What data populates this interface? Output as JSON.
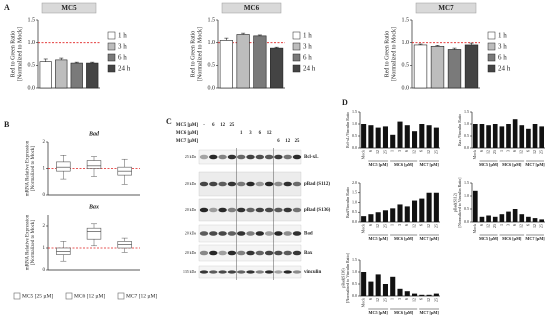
{
  "labels": [
    "A",
    "B",
    "C",
    "D"
  ],
  "panel_b_legend": [
    "MC5 [25  µM]",
    "MC6 [12  µM]",
    "MC7 [12  µM]"
  ],
  "blot": {
    "header": [
      {
        "label": "MC5 [µM]",
        "values": [
          "-",
          "6",
          "12",
          "25",
          null,
          null,
          null,
          null,
          null,
          null,
          null
        ]
      },
      {
        "label": "MC6 [µM]",
        "values": [
          null,
          null,
          null,
          null,
          "1",
          "3",
          "6",
          "12",
          null,
          null,
          null
        ]
      },
      {
        "label": "MC7 [µM]",
        "values": [
          null,
          null,
          null,
          null,
          null,
          null,
          null,
          null,
          "6",
          "12",
          "25"
        ]
      }
    ],
    "rows": [
      {
        "name": "Bcl-xL",
        "kda": "25 kDa"
      },
      {
        "name": "pBad (S112)",
        "kda": "20 kDa"
      },
      {
        "name": "pBad (S136)",
        "kda": "20 kDa"
      },
      {
        "name": "Bad",
        "kda": "20 kDa"
      },
      {
        "name": "Bax",
        "kda": "20 kDa"
      },
      {
        "name": "vinculin",
        "kda": "135 kDa"
      }
    ]
  },
  "chart_data": [
    {
      "type": "bar",
      "title": "MC5",
      "ylabel": [
        "Red to Green Ratio",
        "[Normalized to Mock]"
      ],
      "categories": [
        "1 h",
        "3 h",
        "6 h",
        "24 h"
      ],
      "values": [
        0.58,
        0.62,
        0.55,
        0.55
      ],
      "errors": [
        0.06,
        0.04,
        0.02,
        0.02
      ],
      "colors": [
        "#ffffff",
        "#bdbdbd",
        "#7a7a7a",
        "#444444"
      ],
      "ylim": [
        0,
        1.5
      ],
      "yticks": [
        {
          "value": 0,
          "label": "0.0"
        },
        0.5,
        {
          "value": 1,
          "label": "1.0"
        },
        1.5
      ],
      "ref_line": {
        "value": 1,
        "color": "#e02020"
      }
    },
    {
      "type": "bar",
      "title": "MC6",
      "ylabel": [
        "Red to Green Ratio",
        "[Normalized to Mock]"
      ],
      "categories": [
        "1 h",
        "3 h",
        "6 h",
        "24 h"
      ],
      "values": [
        1.05,
        1.18,
        1.15,
        0.88
      ],
      "errors": [
        0.05,
        0.03,
        0.02,
        0.02
      ],
      "colors": [
        "#ffffff",
        "#bdbdbd",
        "#7a7a7a",
        "#444444"
      ],
      "ylim": [
        0,
        1.5
      ],
      "yticks": [
        {
          "value": 0,
          "label": "0.0"
        },
        0.5,
        {
          "value": 1,
          "label": "1.0"
        },
        1.5
      ],
      "ref_line": {
        "value": 1,
        "color": "#e02020"
      }
    },
    {
      "type": "bar",
      "title": "MC7",
      "ylabel": [
        "Red to Green Ratio",
        "[Normalized to Mock]"
      ],
      "categories": [
        "1 h",
        "3 h",
        "6 h",
        "24 h"
      ],
      "values": [
        0.95,
        0.92,
        0.85,
        0.95
      ],
      "errors": [
        0.02,
        0.02,
        0.03,
        0.04
      ],
      "colors": [
        "#ffffff",
        "#bdbdbd",
        "#7a7a7a",
        "#444444"
      ],
      "ylim": [
        0,
        1.5
      ],
      "yticks": [
        {
          "value": 0,
          "label": "0.0"
        },
        0.5,
        {
          "value": 1,
          "label": "1.0"
        },
        1.5
      ],
      "ref_line": {
        "value": 1,
        "color": "#e02020"
      }
    },
    {
      "type": "box",
      "title": "Bad",
      "ylabel": [
        "mRNA Relative Expression",
        "[Normalized to Mock]"
      ],
      "ylim": [
        0,
        2
      ],
      "yticks": [
        0,
        1,
        2
      ],
      "ref_line": {
        "value": 1,
        "color": "#e02020"
      },
      "boxes": [
        {
          "min": 0.6,
          "q1": 0.9,
          "median": 1.05,
          "q3": 1.25,
          "max": 1.5
        },
        {
          "min": 0.7,
          "q1": 1.0,
          "median": 1.1,
          "q3": 1.3,
          "max": 1.45
        },
        {
          "min": 0.4,
          "q1": 0.75,
          "median": 0.9,
          "q3": 1.05,
          "max": 1.35
        }
      ]
    },
    {
      "type": "box",
      "title": "Bax",
      "ylabel": [
        "mRNA Relative Expression",
        "[Normalized to Mock]"
      ],
      "ylim": [
        0,
        2.5
      ],
      "yticks": [
        0,
        1,
        2
      ],
      "ref_line": {
        "value": 1,
        "color": "#e02020"
      },
      "boxes": [
        {
          "min": 0.4,
          "q1": 0.7,
          "median": 0.85,
          "q3": 1.0,
          "max": 1.3
        },
        {
          "min": 1.1,
          "q1": 1.4,
          "median": 1.75,
          "q3": 1.9,
          "max": 2.1
        },
        {
          "min": 0.8,
          "q1": 1.0,
          "median": 1.15,
          "q3": 1.3,
          "max": 1.45
        }
      ]
    },
    {
      "type": "dbar",
      "ylabel": [
        "Bcl-xL/Vinculin Ratio"
      ],
      "categories": [
        "Mock",
        "6",
        "12",
        "25",
        "1",
        "3",
        "6",
        "12",
        "6",
        "12",
        "25"
      ],
      "groups": [
        "MC5 [µM]",
        "MC6 [µM]",
        "MC7 [µM]"
      ],
      "values": [
        1.0,
        0.95,
        0.85,
        0.9,
        0.55,
        1.1,
        0.95,
        0.7,
        1.0,
        0.95,
        0.85
      ],
      "color": "#111111",
      "ylim": [
        0,
        1.5
      ],
      "yticks": [
        {
          "value": 0,
          "label": "0.0"
        },
        0.5,
        {
          "value": 1,
          "label": "1.0"
        },
        1.5
      ]
    },
    {
      "type": "dbar",
      "ylabel": [
        "Bax /Vinculin Ratio"
      ],
      "categories": [
        "Mock",
        "6",
        "12",
        "25",
        "1",
        "3",
        "6",
        "12",
        "6",
        "12",
        "25"
      ],
      "groups": [
        "MC5 [µM]",
        "MC6 [µM]",
        "MC7 [µM]"
      ],
      "values": [
        1.0,
        1.0,
        0.95,
        1.0,
        0.9,
        1.0,
        1.2,
        0.95,
        0.8,
        1.0,
        0.9
      ],
      "color": "#111111",
      "ylim": [
        0,
        1.5
      ],
      "yticks": [
        {
          "value": 0,
          "label": "0.0"
        },
        0.5,
        {
          "value": 1,
          "label": "1.0"
        },
        1.5
      ]
    },
    {
      "type": "dbar",
      "ylabel": [
        "Bad/Vinculin Ratio"
      ],
      "categories": [
        "Mock",
        "6",
        "12",
        "25",
        "1",
        "3",
        "6",
        "12",
        "6",
        "12",
        "25"
      ],
      "groups": [
        "MC5 [µM]",
        "MC6 [µM]",
        "MC7 [µM]"
      ],
      "values": [
        0.3,
        0.4,
        0.5,
        0.6,
        0.7,
        0.9,
        0.8,
        1.1,
        1.2,
        1.5,
        1.5
      ],
      "color": "#111111",
      "ylim": [
        0,
        2
      ],
      "yticks": [
        {
          "value": 0,
          "label": "0.0"
        },
        0.5,
        {
          "value": 1,
          "label": "1.0"
        },
        1.5,
        {
          "value": 2,
          "label": "2.0"
        }
      ]
    },
    {
      "type": "dbar",
      "ylabel": [
        "pBad(S112)",
        "[Normalized to Vinculin Ratio]"
      ],
      "categories": [
        "Mock",
        "6",
        "12",
        "25",
        "1",
        "3",
        "6",
        "12",
        "6",
        "12",
        "25"
      ],
      "groups": [
        "MC5 [µM]",
        "MC6 [µM]",
        "MC7 [µM]"
      ],
      "values": [
        1.2,
        0.2,
        0.25,
        0.2,
        0.3,
        0.4,
        0.5,
        0.3,
        0.2,
        0.15,
        0.1
      ],
      "color": "#111111",
      "ylim": [
        0,
        1.5
      ],
      "yticks": [
        {
          "value": 0,
          "label": "0.0"
        },
        0.5,
        {
          "value": 1,
          "label": "1.0"
        },
        1.5
      ]
    },
    {
      "type": "dbar",
      "ylabel": [
        "pBad(S136)",
        "[Normalized to Vinculin Ratio]"
      ],
      "categories": [
        "Mock",
        "6",
        "12",
        "25",
        "1",
        "3",
        "6",
        "12",
        "6",
        "12",
        "25"
      ],
      "groups": [
        "MC5 [µM]",
        "MC6 [µM]",
        "MC7 [µM]"
      ],
      "values": [
        1.0,
        0.6,
        0.9,
        0.5,
        0.8,
        0.3,
        0.2,
        0.1,
        0.05,
        0.05,
        0.1
      ],
      "color": "#111111",
      "ylim": [
        0,
        1.5
      ],
      "yticks": [
        {
          "value": 0,
          "label": "0.0"
        },
        0.5,
        {
          "value": 1,
          "label": "1.0"
        },
        1.5
      ]
    }
  ]
}
